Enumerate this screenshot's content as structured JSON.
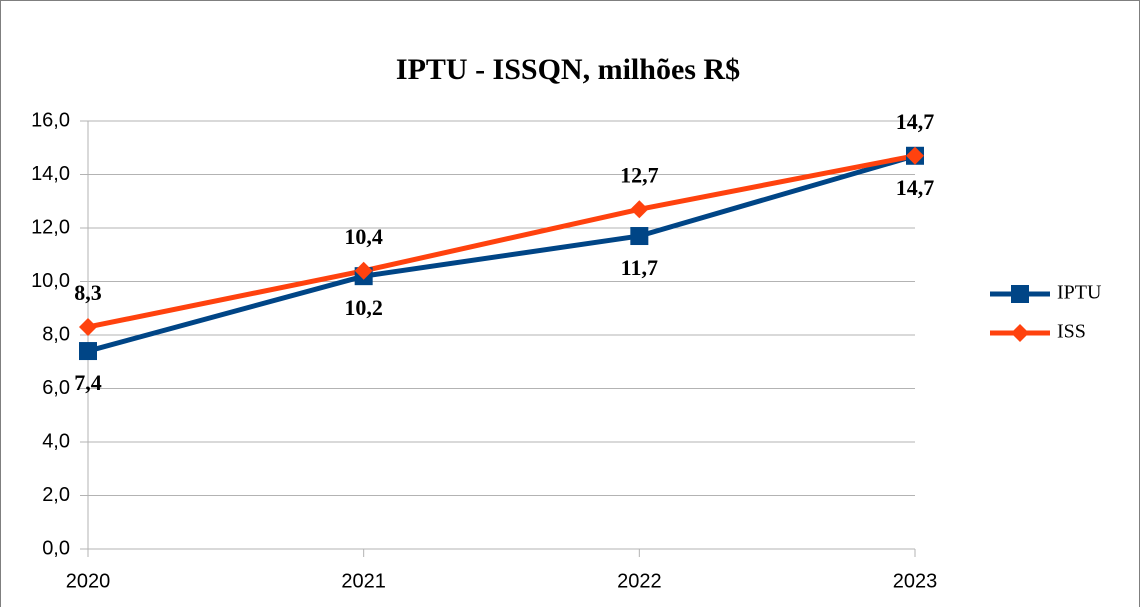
{
  "chart_data": {
    "type": "line",
    "title": "IPTU - ISSQN, milhões R$",
    "categories": [
      "2020",
      "2021",
      "2022",
      "2023"
    ],
    "series": [
      {
        "name": "IPTU",
        "color": "#004586",
        "marker": "square",
        "values": [
          7.4,
          10.2,
          11.7,
          14.7
        ],
        "value_labels": [
          "7,4",
          "10,2",
          "11,7",
          "14,7"
        ],
        "label_position": "below"
      },
      {
        "name": "ISS",
        "color": "#ff420e",
        "marker": "diamond",
        "values": [
          8.3,
          10.4,
          12.7,
          14.7
        ],
        "value_labels": [
          "8,3",
          "10,4",
          "12,7",
          "14,7"
        ],
        "label_position": "above"
      }
    ],
    "ylim": [
      0,
      16
    ],
    "yticks": [
      {
        "value": 0,
        "label": "0,0"
      },
      {
        "value": 2,
        "label": "2,0"
      },
      {
        "value": 4,
        "label": "4,0"
      },
      {
        "value": 6,
        "label": "6,0"
      },
      {
        "value": 8,
        "label": "8,0"
      },
      {
        "value": 10,
        "label": "10,0"
      },
      {
        "value": 12,
        "label": "12,0"
      },
      {
        "value": 14,
        "label": "14,0"
      },
      {
        "value": 16,
        "label": "16,0"
      }
    ],
    "grid": true,
    "legend": "right"
  }
}
